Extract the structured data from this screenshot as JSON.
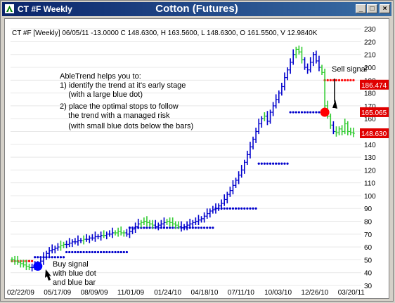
{
  "window": {
    "title": "CT #F Weekly",
    "chart_title": "Cotton (Futures)",
    "buttons": {
      "minimize": "_",
      "maximize": "□",
      "close": "×"
    }
  },
  "header_info": "CT #F [Weekly] 06/05/11  -13.0000 C 148.6300, H 163.5600, L 148.6300, O 161.5500, V 12.9840K",
  "annotations": {
    "description": [
      "AbleTrend helps you to:",
      "1) identify the trend at it's early stage",
      "    (with a large blue dot)",
      "2) place the optimal stops to follow",
      "    the trend with a managed risk",
      "    (with small blue dots below the bars)"
    ],
    "buy_signal": [
      "Buy signal",
      "with blue dot",
      "and blue bar"
    ],
    "sell_signal": "Sell signal"
  },
  "price_tags": [
    {
      "label": "186.474",
      "value": 186.474
    },
    {
      "label": "165.065",
      "value": 165.065
    },
    {
      "label": "148.630",
      "value": 148.63
    }
  ],
  "colors": {
    "up": "#0000cc",
    "down": "#33cc33",
    "stop_up": "#0000cc",
    "stop_down": "#ff0000",
    "signal_buy": "#0000ff",
    "signal_sell": "#ff0000",
    "tag_bg": "#e00000"
  },
  "chart_data": {
    "type": "line",
    "y_ticks": [
      30,
      40,
      50,
      60,
      70,
      80,
      90,
      100,
      110,
      120,
      130,
      140,
      150,
      160,
      170,
      180,
      190,
      200,
      210,
      220,
      230
    ],
    "ylim": [
      30,
      235
    ],
    "x_ticks": [
      "02/22/09",
      "05/17/09",
      "08/09/09",
      "11/01/09",
      "01/24/10",
      "04/18/10",
      "07/11/10",
      "10/03/10",
      "12/26/10",
      "03/20/11"
    ],
    "weeks": 120,
    "series": [
      {
        "values": [
          50,
          49,
          48,
          47,
          46,
          45,
          44,
          44,
          45,
          47,
          49,
          52,
          55,
          57,
          58,
          59,
          60,
          61,
          62,
          62,
          63,
          64,
          64,
          65,
          65,
          66,
          66,
          67,
          67,
          68,
          68,
          69,
          69,
          70,
          70,
          71,
          71,
          72,
          71,
          71,
          70,
          72,
          74,
          76,
          78,
          79,
          80,
          79,
          78,
          77,
          76,
          77,
          78,
          79,
          80,
          79,
          78,
          77,
          76,
          75,
          76,
          77,
          78,
          79,
          80,
          81,
          82,
          84,
          86,
          88,
          89,
          90,
          92,
          94,
          97,
          101,
          104,
          108,
          112,
          116,
          120,
          126,
          132,
          138,
          144,
          150,
          156,
          160,
          162,
          158,
          165,
          170,
          175,
          180,
          185,
          192,
          198,
          204,
          210,
          214,
          212,
          206,
          200,
          198,
          204,
          210,
          205,
          200,
          196,
          170,
          162,
          155,
          150,
          149,
          152,
          150,
          156,
          150,
          149,
          148.63
        ],
        "trend": [
          "d",
          "d",
          "d",
          "d",
          "d",
          "d",
          "d",
          "u",
          "u",
          "u",
          "u",
          "u",
          "u",
          "u",
          "u",
          "u",
          "u",
          "d",
          "d",
          "u",
          "u",
          "u",
          "u",
          "u",
          "u",
          "d",
          "u",
          "u",
          "u",
          "u",
          "u",
          "u",
          "d",
          "u",
          "u",
          "u",
          "d",
          "d",
          "d",
          "d",
          "u",
          "u",
          "u",
          "u",
          "u",
          "d",
          "d",
          "d",
          "d",
          "d",
          "u",
          "u",
          "u",
          "u",
          "d",
          "d",
          "d",
          "d",
          "d",
          "u",
          "u",
          "u",
          "u",
          "u",
          "u",
          "u",
          "u",
          "u",
          "u",
          "u",
          "u",
          "u",
          "u",
          "u",
          "u",
          "u",
          "u",
          "u",
          "u",
          "u",
          "u",
          "u",
          "u",
          "u",
          "u",
          "u",
          "u",
          "u",
          "d",
          "u",
          "u",
          "u",
          "u",
          "u",
          "u",
          "u",
          "u",
          "u",
          "u",
          "d",
          "d",
          "d",
          "u",
          "u",
          "u",
          "u",
          "u",
          "u",
          "d",
          "d",
          "d",
          "d",
          "u",
          "d",
          "d",
          "d",
          "d",
          "d",
          "d",
          "d"
        ]
      }
    ],
    "stops": [
      {
        "from": 0,
        "to": 7,
        "value": 49,
        "side": "down"
      },
      {
        "from": 8,
        "to": 18,
        "value": 52,
        "side": "up"
      },
      {
        "from": 19,
        "to": 40,
        "value": 56,
        "side": "up"
      },
      {
        "from": 41,
        "to": 70,
        "value": 75,
        "side": "up"
      },
      {
        "from": 71,
        "to": 85,
        "value": 90,
        "side": "up"
      },
      {
        "from": 86,
        "to": 96,
        "value": 125,
        "side": "up"
      },
      {
        "from": 97,
        "to": 108,
        "value": 165,
        "side": "up"
      },
      {
        "from": 109,
        "to": 119,
        "value": 190,
        "side": "down"
      }
    ],
    "signals": [
      {
        "type": "buy",
        "index": 9,
        "value": 45
      },
      {
        "type": "sell",
        "index": 109,
        "value": 165
      }
    ]
  }
}
